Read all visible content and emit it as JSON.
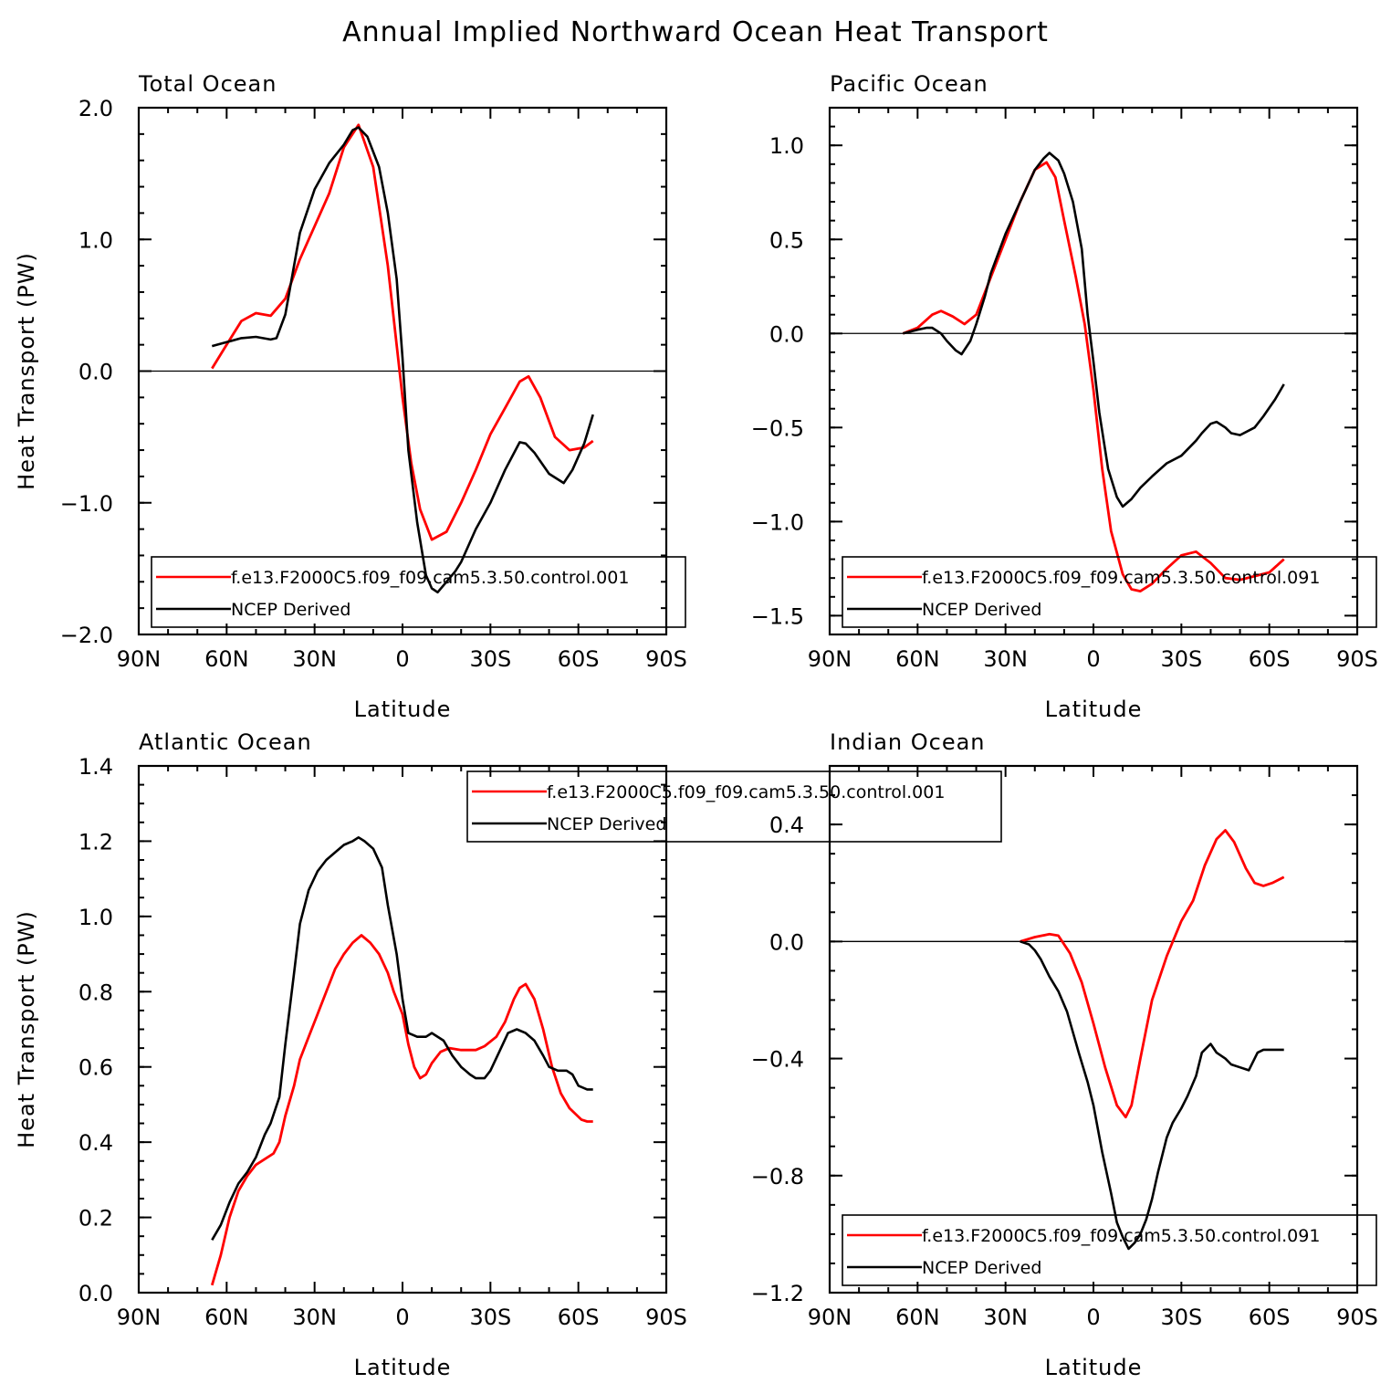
{
  "title": "Annual Implied Northward Ocean Heat Transport",
  "colors": {
    "model": "#ff0000",
    "obs": "#000000",
    "axis": "#000000"
  },
  "chart_data": [
    {
      "type": "line",
      "panel_title": "Total Ocean",
      "xlabel": "Latitude",
      "ylabel": "Heat Transport (PW)",
      "xlim": [
        90,
        -90
      ],
      "ylim": [
        -2.0,
        2.0
      ],
      "xticks": [
        90,
        60,
        30,
        0,
        -30,
        -60,
        -90
      ],
      "xtick_labels": [
        "90N",
        "60N",
        "30N",
        "0",
        "30S",
        "60S",
        "90S"
      ],
      "yticks": [
        -2.0,
        -1.0,
        0.0,
        1.0,
        2.0
      ],
      "ytick_labels": [
        "−2.0",
        "−1.0",
        "0.0",
        "1.0",
        "2.0"
      ],
      "zero_line": true,
      "legend": {
        "position": "bottom",
        "entries": [
          "f.e13.F2000C5.f09_f09.cam5.3.50.control.001",
          "NCEP Derived"
        ]
      },
      "series": [
        {
          "name": "f.e13.F2000C5.f09_f09.cam5.3.50.control.001",
          "color": "#ff0000",
          "x": [
            65,
            60,
            55,
            50,
            45,
            40,
            35,
            30,
            25,
            20,
            15,
            10,
            5,
            0,
            -3,
            -6,
            -10,
            -15,
            -20,
            -25,
            -30,
            -35,
            -40,
            -43,
            -47,
            -52,
            -57,
            -62,
            -65
          ],
          "y": [
            0.02,
            0.2,
            0.38,
            0.44,
            0.42,
            0.55,
            0.85,
            1.1,
            1.35,
            1.7,
            1.87,
            1.55,
            0.8,
            -0.2,
            -0.7,
            -1.05,
            -1.28,
            -1.22,
            -1.0,
            -0.75,
            -0.48,
            -0.28,
            -0.08,
            -0.04,
            -0.2,
            -0.5,
            -0.6,
            -0.58,
            -0.53
          ]
        },
        {
          "name": "NCEP Derived",
          "color": "#000000",
          "x": [
            65,
            60,
            55,
            50,
            45,
            43,
            40,
            35,
            30,
            25,
            20,
            17,
            15,
            12,
            8,
            5,
            2,
            0,
            -2,
            -5,
            -8,
            -10,
            -12,
            -15,
            -18,
            -20,
            -25,
            -30,
            -35,
            -40,
            -42,
            -45,
            -50,
            -55,
            -58,
            -62,
            -65
          ],
          "y": [
            0.19,
            0.22,
            0.25,
            0.26,
            0.24,
            0.25,
            0.43,
            1.05,
            1.38,
            1.58,
            1.72,
            1.83,
            1.85,
            1.78,
            1.55,
            1.2,
            0.7,
            0.1,
            -0.6,
            -1.15,
            -1.55,
            -1.65,
            -1.68,
            -1.6,
            -1.52,
            -1.45,
            -1.2,
            -1.0,
            -0.75,
            -0.54,
            -0.55,
            -0.62,
            -0.78,
            -0.85,
            -0.75,
            -0.55,
            -0.33
          ]
        }
      ]
    },
    {
      "type": "line",
      "panel_title": "Pacific Ocean",
      "xlabel": "Latitude",
      "ylabel": "",
      "xlim": [
        90,
        -90
      ],
      "ylim": [
        -1.6,
        1.2
      ],
      "xticks": [
        90,
        60,
        30,
        0,
        -30,
        -60,
        -90
      ],
      "xtick_labels": [
        "90N",
        "60N",
        "30N",
        "0",
        "30S",
        "60S",
        "90S"
      ],
      "yticks": [
        -1.5,
        -1.0,
        -0.5,
        0.0,
        0.5,
        1.0
      ],
      "ytick_labels": [
        "−1.5",
        "−1.0",
        "−0.5",
        "0.0",
        "0.5",
        "1.0"
      ],
      "zero_line": true,
      "legend": {
        "position": "bottom",
        "entries": [
          "f.e13.F2000C5.f09_f09.cam5.3.50.control.091",
          "NCEP Derived"
        ]
      },
      "series": [
        {
          "name": "f.e13.F2000C5.f09_f09.cam5.3.50.control.091",
          "color": "#ff0000",
          "x": [
            65,
            60,
            55,
            52,
            48,
            44,
            40,
            35,
            30,
            25,
            20,
            16,
            13,
            10,
            6,
            3,
            0,
            -3,
            -6,
            -10,
            -13,
            -16,
            -20,
            -25,
            -30,
            -35,
            -40,
            -45,
            -50,
            -55,
            -60,
            -65
          ],
          "y": [
            0.0,
            0.03,
            0.1,
            0.12,
            0.09,
            0.05,
            0.1,
            0.3,
            0.5,
            0.7,
            0.87,
            0.91,
            0.83,
            0.6,
            0.3,
            0.05,
            -0.3,
            -0.72,
            -1.05,
            -1.28,
            -1.36,
            -1.37,
            -1.33,
            -1.25,
            -1.18,
            -1.16,
            -1.22,
            -1.3,
            -1.31,
            -1.29,
            -1.27,
            -1.2
          ]
        },
        {
          "name": "NCEP Derived",
          "color": "#000000",
          "x": [
            65,
            60,
            57,
            55,
            52,
            50,
            47,
            45,
            42,
            40,
            37,
            35,
            30,
            25,
            20,
            17,
            15,
            12,
            10,
            7,
            4,
            2,
            0,
            -2,
            -5,
            -8,
            -10,
            -13,
            -16,
            -20,
            -25,
            -30,
            -35,
            -37,
            -40,
            -42,
            -45,
            -47,
            -50,
            -55,
            -58,
            -62,
            -65
          ],
          "y": [
            0.0,
            0.02,
            0.03,
            0.03,
            0.0,
            -0.04,
            -0.09,
            -0.11,
            -0.04,
            0.05,
            0.2,
            0.32,
            0.53,
            0.7,
            0.87,
            0.93,
            0.96,
            0.92,
            0.85,
            0.7,
            0.45,
            0.1,
            -0.15,
            -0.42,
            -0.72,
            -0.87,
            -0.92,
            -0.88,
            -0.82,
            -0.76,
            -0.69,
            -0.65,
            -0.57,
            -0.53,
            -0.48,
            -0.47,
            -0.5,
            -0.53,
            -0.54,
            -0.5,
            -0.44,
            -0.35,
            -0.27
          ]
        }
      ]
    },
    {
      "type": "line",
      "panel_title": "Atlantic Ocean",
      "xlabel": "Latitude",
      "ylabel": "Heat Transport (PW)",
      "xlim": [
        90,
        -90
      ],
      "ylim": [
        0.0,
        1.4
      ],
      "xticks": [
        90,
        60,
        30,
        0,
        -30,
        -60,
        -90
      ],
      "xtick_labels": [
        "90N",
        "60N",
        "30N",
        "0",
        "30S",
        "60S",
        "90S"
      ],
      "yticks": [
        0.0,
        0.2,
        0.4,
        0.6,
        0.8,
        1.0,
        1.2,
        1.4
      ],
      "ytick_labels": [
        "0.0",
        "0.2",
        "0.4",
        "0.6",
        "0.8",
        "1.0",
        "1.2",
        "1.4"
      ],
      "zero_line": false,
      "legend": {
        "position": "top-center",
        "entries": [
          "f.e13.F2000C5.f09_f09.cam5.3.50.control.001",
          "NCEP Derived"
        ]
      },
      "series": [
        {
          "name": "f.e13.F2000C5.f09_f09.cam5.3.50.control.001",
          "color": "#ff0000",
          "x": [
            65,
            62,
            59,
            56,
            53,
            50,
            47,
            44,
            42,
            40,
            37,
            35,
            32,
            29,
            26,
            23,
            20,
            17,
            14,
            11,
            8,
            5,
            3,
            0,
            -2,
            -4,
            -6,
            -8,
            -10,
            -13,
            -16,
            -20,
            -25,
            -28,
            -32,
            -35,
            -38,
            -40,
            -42,
            -45,
            -48,
            -51,
            -54,
            -57,
            -61,
            -63,
            -65
          ],
          "y": [
            0.02,
            0.1,
            0.2,
            0.27,
            0.31,
            0.34,
            0.355,
            0.37,
            0.4,
            0.47,
            0.55,
            0.62,
            0.68,
            0.74,
            0.8,
            0.86,
            0.9,
            0.93,
            0.95,
            0.93,
            0.9,
            0.85,
            0.8,
            0.74,
            0.66,
            0.6,
            0.57,
            0.58,
            0.61,
            0.64,
            0.65,
            0.645,
            0.645,
            0.655,
            0.68,
            0.72,
            0.78,
            0.81,
            0.82,
            0.78,
            0.7,
            0.6,
            0.53,
            0.49,
            0.46,
            0.455,
            0.455
          ]
        },
        {
          "name": "NCEP Derived",
          "color": "#000000",
          "x": [
            65,
            62,
            59,
            56,
            53,
            50,
            47,
            45,
            42,
            40,
            37,
            35,
            32,
            29,
            26,
            23,
            20,
            17,
            15,
            13,
            10,
            7,
            5,
            2,
            0,
            -2,
            -5,
            -8,
            -10,
            -14,
            -17,
            -20,
            -23,
            -25,
            -28,
            -30,
            -33,
            -36,
            -39,
            -42,
            -45,
            -48,
            -50,
            -53,
            -56,
            -58,
            -60,
            -63,
            -65
          ],
          "y": [
            0.14,
            0.18,
            0.24,
            0.29,
            0.32,
            0.36,
            0.42,
            0.45,
            0.52,
            0.66,
            0.85,
            0.98,
            1.07,
            1.12,
            1.15,
            1.17,
            1.19,
            1.2,
            1.21,
            1.2,
            1.18,
            1.13,
            1.03,
            0.9,
            0.78,
            0.69,
            0.68,
            0.68,
            0.69,
            0.67,
            0.63,
            0.6,
            0.58,
            0.57,
            0.57,
            0.59,
            0.64,
            0.69,
            0.7,
            0.69,
            0.67,
            0.63,
            0.6,
            0.59,
            0.59,
            0.58,
            0.55,
            0.54,
            0.54
          ]
        }
      ]
    },
    {
      "type": "line",
      "panel_title": "Indian Ocean",
      "xlabel": "Latitude",
      "ylabel": "",
      "xlim": [
        90,
        -90
      ],
      "ylim": [
        -1.2,
        0.6
      ],
      "xticks": [
        90,
        60,
        30,
        0,
        -30,
        -60,
        -90
      ],
      "xtick_labels": [
        "90N",
        "60N",
        "30N",
        "0",
        "30S",
        "60S",
        "90S"
      ],
      "yticks": [
        -1.2,
        -0.8,
        -0.4,
        0.0,
        0.4
      ],
      "ytick_labels": [
        "−1.2",
        "−0.8",
        "−0.4",
        "0.0",
        "0.4"
      ],
      "zero_line": true,
      "legend": {
        "position": "bottom",
        "entries": [
          "f.e13.F2000C5.f09_f09.cam5.3.50.control.091",
          "NCEP Derived"
        ]
      },
      "series": [
        {
          "name": "f.e13.F2000C5.f09_f09.cam5.3.50.control.091",
          "color": "#ff0000",
          "x": [
            25,
            20,
            15,
            12,
            8,
            4,
            0,
            -4,
            -8,
            -11,
            -13,
            -16,
            -20,
            -25,
            -30,
            -34,
            -38,
            -42,
            -45,
            -48,
            -52,
            -55,
            -58,
            -61,
            -65
          ],
          "y": [
            0.0,
            0.015,
            0.025,
            0.02,
            -0.04,
            -0.14,
            -0.28,
            -0.43,
            -0.56,
            -0.6,
            -0.56,
            -0.4,
            -0.2,
            -0.05,
            0.07,
            0.14,
            0.26,
            0.35,
            0.38,
            0.34,
            0.25,
            0.2,
            0.19,
            0.2,
            0.22
          ]
        },
        {
          "name": "NCEP Derived",
          "color": "#000000",
          "x": [
            25,
            22,
            20,
            18,
            15,
            12,
            9,
            7,
            5,
            2,
            0,
            -3,
            -6,
            -8,
            -10,
            -12,
            -14,
            -16,
            -18,
            -20,
            -22,
            -25,
            -27,
            -30,
            -32,
            -35,
            -37,
            -40,
            -42,
            -45,
            -47,
            -50,
            -53,
            -56,
            -58,
            -60,
            -62,
            -65
          ],
          "y": [
            0.0,
            -0.01,
            -0.03,
            -0.06,
            -0.12,
            -0.17,
            -0.24,
            -0.31,
            -0.38,
            -0.48,
            -0.56,
            -0.72,
            -0.86,
            -0.96,
            -1.01,
            -1.05,
            -1.03,
            -1.0,
            -0.95,
            -0.88,
            -0.79,
            -0.67,
            -0.62,
            -0.57,
            -0.53,
            -0.46,
            -0.38,
            -0.35,
            -0.38,
            -0.4,
            -0.42,
            -0.43,
            -0.44,
            -0.38,
            -0.37,
            -0.37,
            -0.37,
            -0.37
          ]
        }
      ]
    }
  ]
}
